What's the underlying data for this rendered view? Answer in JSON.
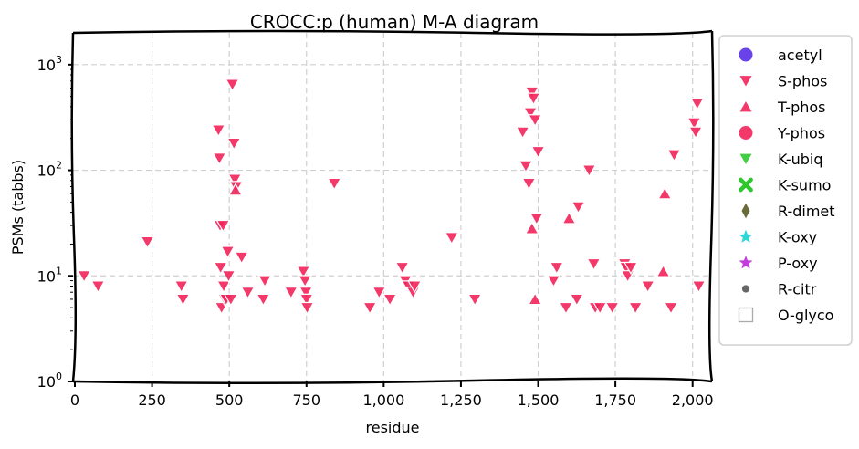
{
  "chart_data": {
    "type": "scatter",
    "title": "CROCC:p (human) M-A diagram",
    "xlabel": "residue",
    "ylabel": "PSMs (tabbs)",
    "xlim": [
      0,
      2060
    ],
    "ylim": [
      1,
      2000
    ],
    "y_scale": "log",
    "grid": true,
    "legend_position": "right",
    "x_ticks": [
      {
        "value": 0,
        "label": "0"
      },
      {
        "value": 250,
        "label": "250"
      },
      {
        "value": 500,
        "label": "500"
      },
      {
        "value": 750,
        "label": "750"
      },
      {
        "value": 1000,
        "label": "1,000"
      },
      {
        "value": 1250,
        "label": "1,250"
      },
      {
        "value": 1500,
        "label": "1,500"
      },
      {
        "value": 1750,
        "label": "1,750"
      },
      {
        "value": 2000,
        "label": "2,000"
      }
    ],
    "y_ticks": [
      {
        "value": 1,
        "label": "10^0"
      },
      {
        "value": 10,
        "label": "10^1"
      },
      {
        "value": 100,
        "label": "10^2"
      },
      {
        "value": 1000,
        "label": "10^3"
      }
    ],
    "series": [
      {
        "name": "acetyl",
        "marker": "circle",
        "color": "#5a2ee8",
        "points": []
      },
      {
        "name": "S-phos",
        "marker": "triangle-down",
        "color": "#f2245a",
        "points": [
          [
            30,
            10
          ],
          [
            75,
            8
          ],
          [
            235,
            21
          ],
          [
            345,
            8
          ],
          [
            350,
            6
          ],
          [
            465,
            240
          ],
          [
            468,
            130
          ],
          [
            470,
            30
          ],
          [
            472,
            12
          ],
          [
            475,
            5
          ],
          [
            480,
            30
          ],
          [
            482,
            8
          ],
          [
            485,
            6
          ],
          [
            490,
            6
          ],
          [
            495,
            17
          ],
          [
            498,
            10
          ],
          [
            505,
            6
          ],
          [
            510,
            650
          ],
          [
            515,
            180
          ],
          [
            518,
            82
          ],
          [
            522,
            70
          ],
          [
            540,
            15
          ],
          [
            560,
            7
          ],
          [
            610,
            6
          ],
          [
            615,
            9
          ],
          [
            700,
            7
          ],
          [
            740,
            11
          ],
          [
            745,
            9
          ],
          [
            748,
            7
          ],
          [
            750,
            6
          ],
          [
            752,
            5
          ],
          [
            840,
            75
          ],
          [
            955,
            5
          ],
          [
            985,
            7
          ],
          [
            1020,
            6
          ],
          [
            1060,
            12
          ],
          [
            1070,
            9
          ],
          [
            1080,
            8
          ],
          [
            1095,
            7
          ],
          [
            1100,
            8
          ],
          [
            1220,
            23
          ],
          [
            1295,
            6
          ],
          [
            1450,
            230
          ],
          [
            1460,
            110
          ],
          [
            1470,
            75
          ],
          [
            1475,
            350
          ],
          [
            1480,
            550
          ],
          [
            1485,
            480
          ],
          [
            1490,
            300
          ],
          [
            1495,
            35
          ],
          [
            1500,
            150
          ],
          [
            1550,
            9
          ],
          [
            1560,
            12
          ],
          [
            1590,
            5
          ],
          [
            1625,
            6
          ],
          [
            1630,
            45
          ],
          [
            1665,
            100
          ],
          [
            1680,
            13
          ],
          [
            1685,
            5
          ],
          [
            1700,
            5
          ],
          [
            1740,
            5
          ],
          [
            1780,
            13
          ],
          [
            1785,
            12
          ],
          [
            1790,
            10
          ],
          [
            1800,
            12
          ],
          [
            1815,
            5
          ],
          [
            1855,
            8
          ],
          [
            1930,
            5
          ],
          [
            1940,
            140
          ],
          [
            2005,
            280
          ],
          [
            2010,
            230
          ],
          [
            2015,
            430
          ],
          [
            2020,
            8
          ]
        ]
      },
      {
        "name": "T-phos",
        "marker": "triangle-up",
        "color": "#f2245a",
        "points": [
          [
            520,
            65
          ],
          [
            1480,
            28
          ],
          [
            1490,
            6
          ],
          [
            1600,
            35
          ],
          [
            1905,
            11
          ],
          [
            1910,
            60
          ]
        ]
      },
      {
        "name": "Y-phos",
        "marker": "circle",
        "color": "#f2245a",
        "points": []
      },
      {
        "name": "K-ubiq",
        "marker": "triangle-down",
        "color": "#2ec82e",
        "points": []
      },
      {
        "name": "K-sumo",
        "marker": "x",
        "color": "#2ec82e",
        "points": []
      },
      {
        "name": "R-dimet",
        "marker": "diamond",
        "color": "#6b6b3a",
        "points": []
      },
      {
        "name": "K-oxy",
        "marker": "star",
        "color": "#2fd6d6",
        "points": []
      },
      {
        "name": "P-oxy",
        "marker": "star",
        "color": "#c23cdc",
        "points": []
      },
      {
        "name": "R-citr",
        "marker": "dot",
        "color": "#666666",
        "points": []
      },
      {
        "name": "O-glyco",
        "marker": "square-open",
        "color": "#aaaaaa",
        "points": []
      }
    ]
  }
}
